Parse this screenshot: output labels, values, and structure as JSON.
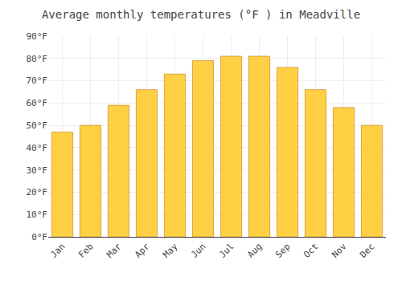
{
  "chart_data": {
    "type": "bar",
    "title": "Average monthly temperatures (°F ) in Meadville",
    "categories": [
      "Jan",
      "Feb",
      "Mar",
      "Apr",
      "May",
      "Jun",
      "Jul",
      "Aug",
      "Sep",
      "Oct",
      "Nov",
      "Dec"
    ],
    "values": [
      47,
      50,
      59,
      66,
      73,
      79,
      81,
      81,
      76,
      66,
      58,
      50
    ],
    "color": "#FFD044",
    "ylim": [
      0,
      90
    ],
    "yticks": [
      {
        "value": 0,
        "label": "0°F"
      },
      {
        "value": 10,
        "label": "10°F"
      },
      {
        "value": 20,
        "label": "20°F"
      },
      {
        "value": 30,
        "label": "30°F"
      },
      {
        "value": 40,
        "label": "40°F"
      },
      {
        "value": 50,
        "label": "50°F"
      },
      {
        "value": 60,
        "label": "60°F"
      },
      {
        "value": 70,
        "label": "70°F"
      },
      {
        "value": 80,
        "label": "80°F"
      },
      {
        "value": 90,
        "label": "90°F"
      }
    ],
    "grid": true
  }
}
